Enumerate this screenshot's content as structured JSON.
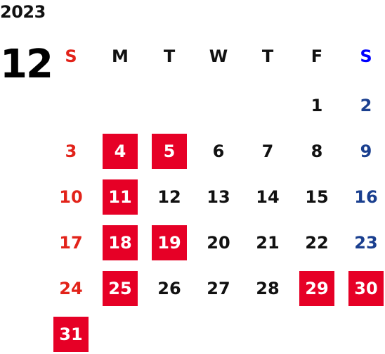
{
  "calendar": {
    "year": "2023",
    "month": "12",
    "weekdays": [
      "S",
      "M",
      "T",
      "W",
      "T",
      "F",
      "S"
    ],
    "weeks": [
      [
        "",
        "",
        "",
        "",
        "",
        "1",
        "2"
      ],
      [
        "3",
        "4",
        "5",
        "6",
        "7",
        "8",
        "9"
      ],
      [
        "10",
        "11",
        "12",
        "13",
        "14",
        "15",
        "16"
      ],
      [
        "17",
        "18",
        "19",
        "20",
        "21",
        "22",
        "23"
      ],
      [
        "24",
        "25",
        "26",
        "27",
        "28",
        "29",
        "30"
      ],
      [
        "31",
        "",
        "",
        "",
        "",
        "",
        ""
      ]
    ],
    "highlighted_days": [
      "4",
      "5",
      "11",
      "18",
      "19",
      "25",
      "29",
      "30",
      "31"
    ]
  },
  "colors": {
    "sunday": "#e2231a",
    "saturday": "#1a3f8f",
    "saturday_header": "#0000ff",
    "highlight_bg": "#e60026",
    "highlight_text": "#ffffff",
    "default_text": "#111111"
  }
}
